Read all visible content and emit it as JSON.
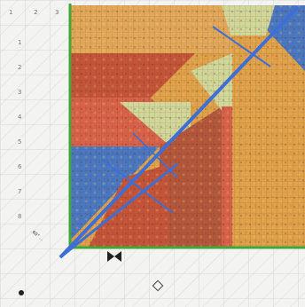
{
  "photo": {
    "subject": "quilt-ruler-over-half-square-triangle-quilt-block",
    "colors": {
      "ruler_bg": "#f3f3f1",
      "ruler_grid": "#c9c9c9",
      "green_edge": "#3fa63a",
      "blue_line": "#3d6fd6",
      "fabric_gold": "#e2a85a",
      "fabric_rust": "#c4553a",
      "fabric_red": "#d8634a",
      "fabric_green": "#cfd79a",
      "fabric_blue": "#4a78c2",
      "fabric_mustard": "#dfa24a",
      "fabric_brown": "#b4583d"
    }
  },
  "ruler": {
    "top_numbers": [
      "1",
      "2",
      "3"
    ],
    "left_numbers": [
      "1",
      "2",
      "3",
      "4",
      "5",
      "6",
      "7",
      "8"
    ],
    "diagonal_text": "60° ..."
  }
}
